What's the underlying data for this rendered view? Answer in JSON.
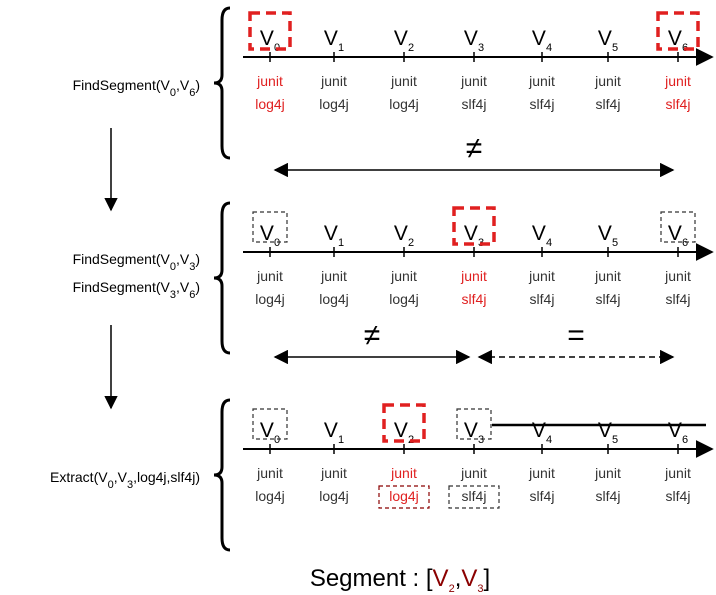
{
  "colors": {
    "highlight": "#e02020",
    "segment_value": "#8b0000",
    "dashed_box": "#333333",
    "line": "#000000"
  },
  "versions": [
    {
      "base": "V",
      "sub": "0"
    },
    {
      "base": "V",
      "sub": "1"
    },
    {
      "base": "V",
      "sub": "2"
    },
    {
      "base": "V",
      "sub": "3"
    },
    {
      "base": "V",
      "sub": "4"
    },
    {
      "base": "V",
      "sub": "5"
    },
    {
      "base": "V",
      "sub": "6"
    }
  ],
  "rows": [
    {
      "steps": [
        {
          "name": "FindSegment(",
          "args": [
            [
              "V",
              "0"
            ],
            [
              "V",
              "6"
            ]
          ],
          "close": ")"
        }
      ],
      "deps": [
        {
          "a": "junit",
          "b": "log4j",
          "color": "red"
        },
        {
          "a": "junit",
          "b": "log4j",
          "color": "black"
        },
        {
          "a": "junit",
          "b": "log4j",
          "color": "black"
        },
        {
          "a": "junit",
          "b": "slf4j",
          "color": "black"
        },
        {
          "a": "junit",
          "b": "slf4j",
          "color": "black"
        },
        {
          "a": "junit",
          "b": "slf4j",
          "color": "black"
        },
        {
          "a": "junit",
          "b": "slf4j",
          "color": "red"
        }
      ],
      "red_boxes": [
        0,
        6
      ],
      "gray_boxes": [],
      "comparisons": [
        {
          "symbol": "≠",
          "from": 0,
          "to": 6,
          "style": "solid"
        }
      ]
    },
    {
      "steps": [
        {
          "name": "FindSegment(",
          "args": [
            [
              "V",
              "0"
            ],
            [
              "V",
              "3"
            ]
          ],
          "close": ")"
        },
        {
          "name": "FindSegment(",
          "args": [
            [
              "V",
              "3"
            ],
            [
              "V",
              "6"
            ]
          ],
          "close": ")"
        }
      ],
      "deps": [
        {
          "a": "junit",
          "b": "log4j",
          "color": "black"
        },
        {
          "a": "junit",
          "b": "log4j",
          "color": "black"
        },
        {
          "a": "junit",
          "b": "log4j",
          "color": "black"
        },
        {
          "a": "junit",
          "b": "slf4j",
          "color": "red"
        },
        {
          "a": "junit",
          "b": "slf4j",
          "color": "black"
        },
        {
          "a": "junit",
          "b": "slf4j",
          "color": "black"
        },
        {
          "a": "junit",
          "b": "slf4j",
          "color": "black"
        }
      ],
      "red_boxes": [
        3
      ],
      "gray_boxes": [
        0,
        6
      ],
      "comparisons": [
        {
          "symbol": "≠",
          "from": 0,
          "to": 3,
          "style": "solid"
        },
        {
          "symbol": "=",
          "from": 3,
          "to": 6,
          "style": "dashed"
        }
      ]
    },
    {
      "steps": [
        {
          "name": "Extract(",
          "args": [
            [
              "V",
              "0"
            ],
            [
              "V",
              "3"
            ]
          ],
          "extra": ",log4j,slf4j",
          "close": ")"
        }
      ],
      "deps": [
        {
          "a": "junit",
          "b": "log4j",
          "color": "black"
        },
        {
          "a": "junit",
          "b": "log4j",
          "color": "black"
        },
        {
          "a": "junit",
          "b": "log4j",
          "color": "red"
        },
        {
          "a": "junit",
          "b": "slf4j",
          "color": "black"
        },
        {
          "a": "junit",
          "b": "slf4j",
          "color": "black"
        },
        {
          "a": "junit",
          "b": "slf4j",
          "color": "black"
        },
        {
          "a": "junit",
          "b": "slf4j",
          "color": "black"
        }
      ],
      "red_boxes": [
        2
      ],
      "gray_boxes": [
        0,
        3
      ],
      "extract_boxes": [
        2,
        3
      ],
      "struck_versions": [
        4,
        5,
        6
      ],
      "comparisons": []
    }
  ],
  "result": {
    "prefix": "Segment : [",
    "start": [
      "V",
      "2"
    ],
    "sep": ",",
    "end": [
      "V",
      "3"
    ],
    "close": "]"
  }
}
